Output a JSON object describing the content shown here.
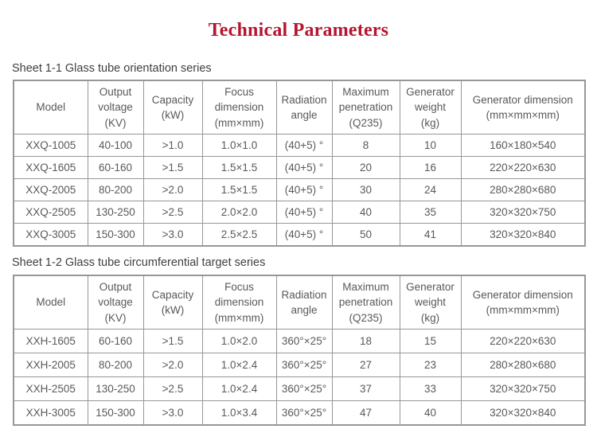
{
  "page": {
    "title": "Technical Parameters"
  },
  "colors": {
    "title": "#b5152e",
    "table_text": "#595959",
    "border": "#979797",
    "label_text": "#3f3f3f"
  },
  "tables": [
    {
      "caption": "Sheet 1-1 Glass tube orientation series",
      "headers": [
        "Model",
        "Output\nvoltage\n(KV)",
        "Capacity\n(kW)",
        "Focus\ndimension\n(mm×mm)",
        "Radiation\nangle",
        "Maximum\npenetration\n(Q235)",
        "Generator\nweight\n(kg)",
        "Generator dimension\n(mm×mm×mm)"
      ],
      "rows": [
        [
          "XXQ-1005",
          "40-100",
          ">1.0",
          "1.0×1.0",
          "(40+5) °",
          "8",
          "10",
          "160×180×540"
        ],
        [
          "XXQ-1605",
          "60-160",
          ">1.5",
          "1.5×1.5",
          "(40+5) °",
          "20",
          "16",
          "220×220×630"
        ],
        [
          "XXQ-2005",
          "80-200",
          ">2.0",
          "1.5×1.5",
          "(40+5) °",
          "30",
          "24",
          "280×280×680"
        ],
        [
          "XXQ-2505",
          "130-250",
          ">2.5",
          "2.0×2.0",
          "(40+5) °",
          "40",
          "35",
          "320×320×750"
        ],
        [
          "XXQ-3005",
          "150-300",
          ">3.0",
          "2.5×2.5",
          "(40+5) °",
          "50",
          "41",
          "320×320×840"
        ]
      ]
    },
    {
      "caption": "Sheet 1-2 Glass tube circumferential target series",
      "headers": [
        "Model",
        "Output\nvoltage\n(KV)",
        "Capacity\n(kW)",
        "Focus\ndimension\n(mm×mm)",
        "Radiation\nangle",
        "Maximum\npenetration\n(Q235)",
        "Generator\nweight\n(kg)",
        "Generator dimension\n(mm×mm×mm)"
      ],
      "rows": [
        [
          "XXH-1605",
          "60-160",
          ">1.5",
          "1.0×2.0",
          "360°×25°",
          "18",
          "15",
          "220×220×630"
        ],
        [
          "XXH-2005",
          "80-200",
          ">2.0",
          "1.0×2.4",
          "360°×25°",
          "27",
          "23",
          "280×280×680"
        ],
        [
          "XXH-2505",
          "130-250",
          ">2.5",
          "1.0×2.4",
          "360°×25°",
          "37",
          "33",
          "320×320×750"
        ],
        [
          "XXH-3005",
          "150-300",
          ">3.0",
          "1.0×3.4",
          "360°×25°",
          "47",
          "40",
          "320×320×840"
        ]
      ]
    }
  ]
}
